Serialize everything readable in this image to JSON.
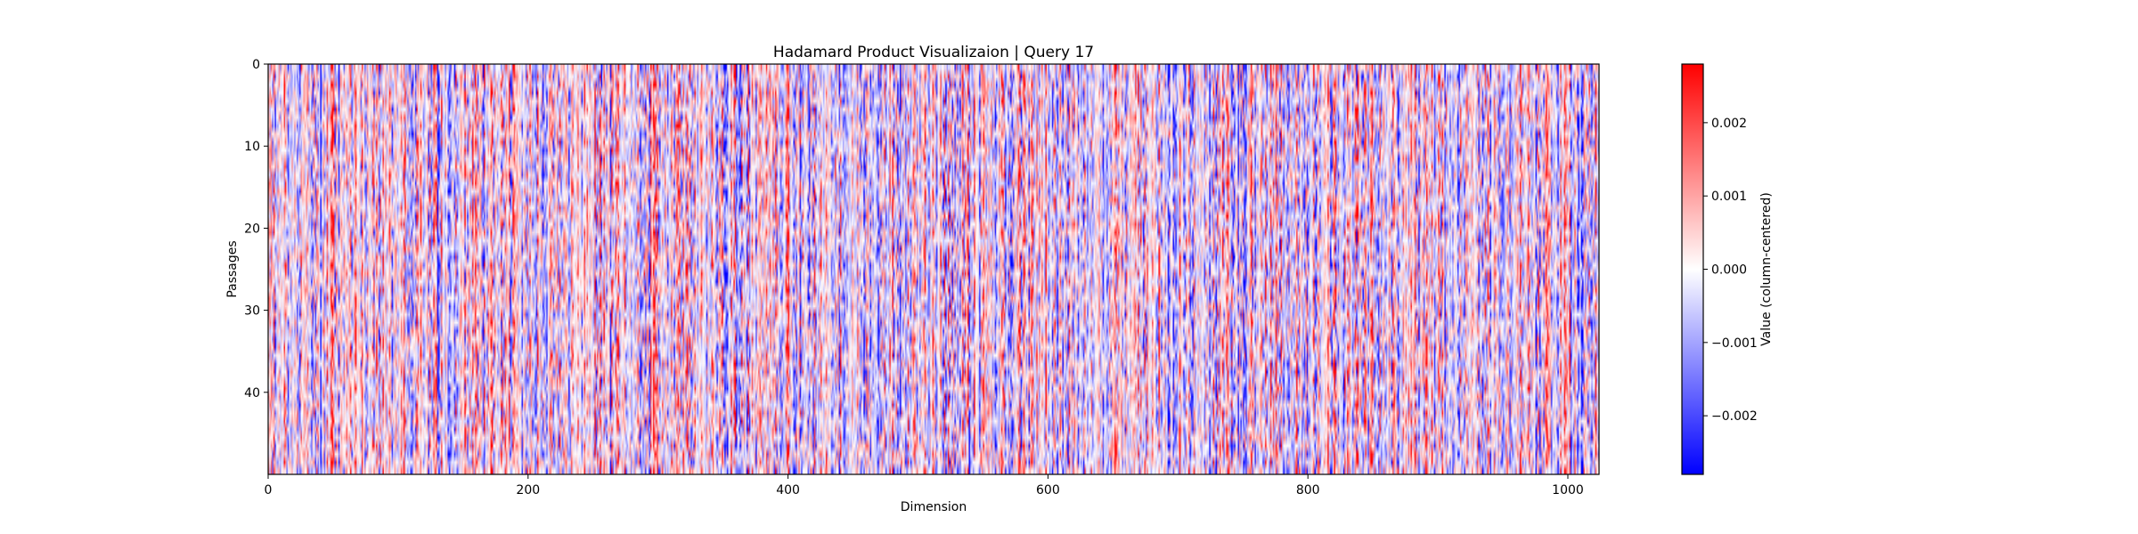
{
  "chart_data": {
    "type": "heatmap",
    "title": "Hadamard Product Visualizaion | Query 17",
    "xlabel": "Dimension",
    "ylabel": "Passages",
    "xlim": [
      0,
      1024
    ],
    "ylim": [
      0,
      50
    ],
    "y_inverted": true,
    "rows": 50,
    "columns": 1024,
    "xticks": [
      0,
      200,
      400,
      600,
      800,
      1000
    ],
    "yticks": [
      0,
      10,
      20,
      30,
      40
    ],
    "colormap": "bwr",
    "colors": {
      "low": "#0000ff",
      "mid": "#ffffff",
      "high": "#ff0000"
    },
    "colorbar": {
      "label": "Value (column-centered)",
      "min": -0.0028,
      "max": 0.0028,
      "ticks": [
        -0.002,
        -0.001,
        0.0,
        0.001,
        0.002
      ],
      "tick_labels": [
        "−0.002",
        "−0.001",
        "0.000",
        "0.001",
        "0.002"
      ]
    }
  }
}
